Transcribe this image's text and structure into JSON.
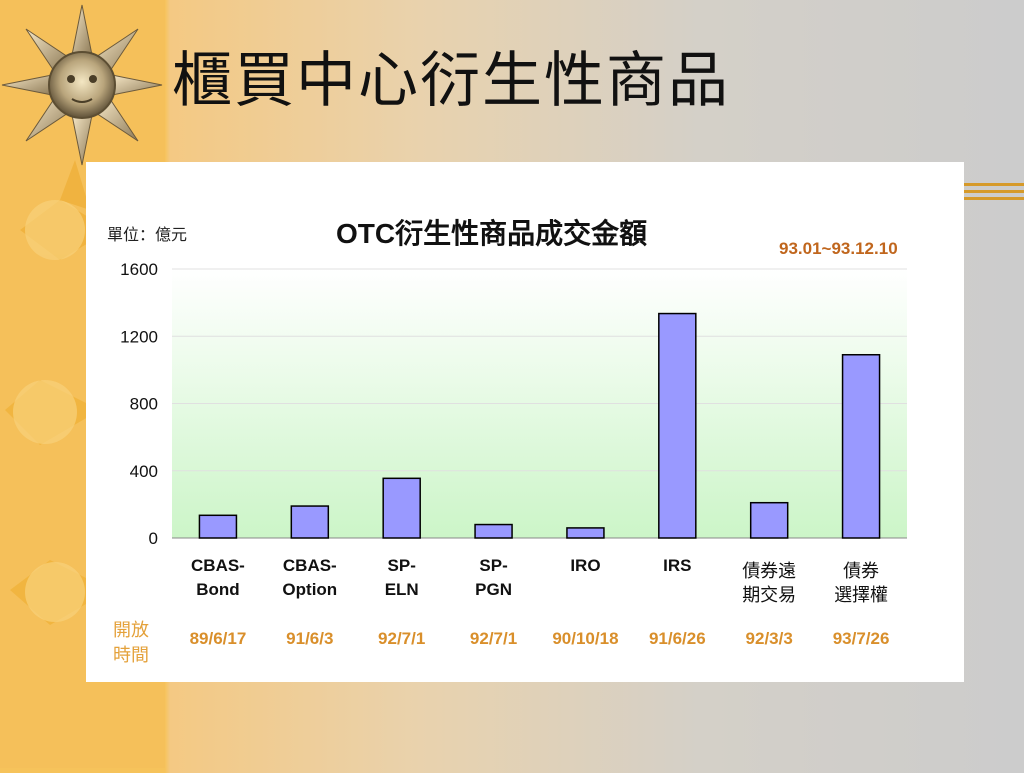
{
  "slide": {
    "title": "櫃買中心衍生性商品"
  },
  "chart_data": {
    "type": "bar",
    "title": "OTC衍生性商品成交金額",
    "unit_label": "單位：億元",
    "period": "93.01~93.12.10",
    "categories": [
      "CBAS-\nBond",
      "CBAS-\nOption",
      "SP-\nELN",
      "SP-\nPGN",
      "IRO",
      "IRS",
      "債券遠\n期交易",
      "債券\n選擇權"
    ],
    "values": [
      135,
      190,
      355,
      80,
      60,
      1335,
      210,
      1090
    ],
    "ylim": [
      0,
      1600
    ],
    "yticks": [
      "0",
      "400",
      "800",
      "1200",
      "1600"
    ],
    "ytick_values": [
      0,
      400,
      800,
      1200,
      1600
    ],
    "open_label": "開放\n時間",
    "open_dates": [
      "89/6/17",
      "91/6/3",
      "92/7/1",
      "92/7/1",
      "90/10/18",
      "91/6/26",
      "92/3/3",
      "93/7/26"
    ],
    "grid": true,
    "colors": {
      "bar_fill": "#9999ff",
      "bar_stroke": "#000000",
      "plot_bg_top": "#ffffff",
      "plot_bg_bottom": "#ccf5c8",
      "date_color": "#d98f2b",
      "period_color": "#c0661d"
    }
  }
}
